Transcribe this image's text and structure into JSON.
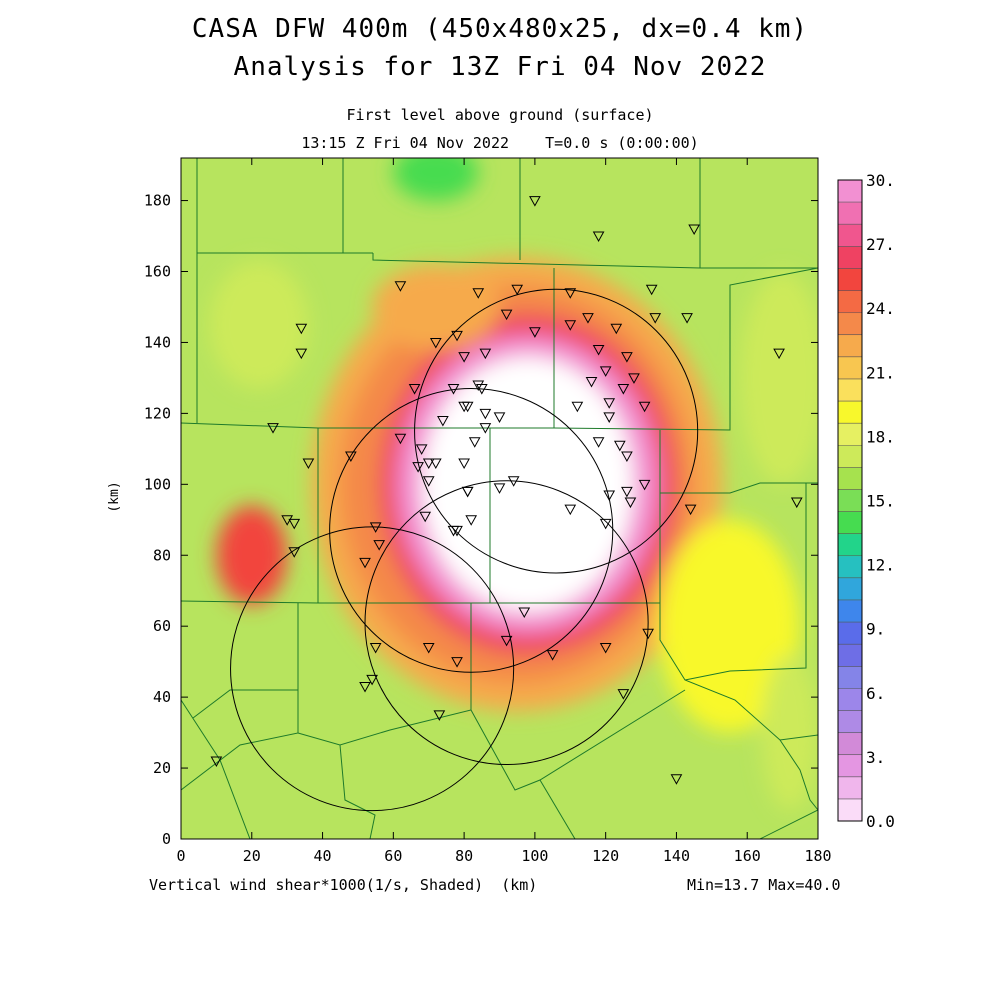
{
  "header": {
    "title": "CASA DFW 400m (450x480x25, dx=0.4 km)",
    "subtitle": "Analysis for 13Z Fri 04 Nov 2022",
    "level": "First level above ground (surface)",
    "valid_time": "13:15 Z Fri 04 Nov 2022    T=0.0 s (0:00:00)"
  },
  "footer": {
    "field_label": "Vertical wind shear*1000(1/s, Shaded)  (km)",
    "minmax": "Min=13.7 Max=40.0"
  },
  "chart_data": {
    "type": "heatmap",
    "title": "CASA DFW 400m (450x480x25, dx=0.4 km)",
    "subtitle": "Analysis for 13Z Fri 04 Nov 2022",
    "xlabel": "(km)",
    "ylabel": "(km)",
    "xlim": [
      0,
      180
    ],
    "ylim": [
      0,
      192
    ],
    "x_ticks": [
      "0",
      "20",
      "40",
      "60",
      "80",
      "100",
      "120",
      "140",
      "160",
      "180"
    ],
    "y_ticks": [
      "0",
      "20",
      "40",
      "60",
      "80",
      "100",
      "120",
      "140",
      "160",
      "180"
    ],
    "field": "Vertical wind shear*1000",
    "units": "1/s",
    "min": 13.7,
    "max": 40.0,
    "colorbar": {
      "levels": [
        0,
        1.5,
        3,
        4.5,
        6,
        7.5,
        9,
        10.5,
        12,
        13.5,
        15,
        16.5,
        18,
        19.5,
        21,
        22.5,
        24,
        25.5,
        27,
        28.5,
        30
      ],
      "labels": [
        "0.0",
        "3.",
        "6.",
        "9.",
        "12.",
        "15.",
        "18.",
        "21.",
        "24.",
        "27.",
        "30."
      ],
      "colors": [
        "#fadcf8",
        "#f0b6ec",
        "#e496e2",
        "#d28ad8",
        "#ae8ae6",
        "#9c86ea",
        "#8484e8",
        "#6e6ee6",
        "#5a6cea",
        "#3e86ec",
        "#30a6dc",
        "#26c0c0",
        "#22d48a",
        "#46dc50",
        "#7ade56",
        "#a6e24e",
        "#cdea5a",
        "#e6f062",
        "#f8f82c",
        "#fae05c",
        "#f8c650",
        "#f6aa4c",
        "#f4894a",
        "#f46a44",
        "#f2453e",
        "#ef4262",
        "#f0568e",
        "#f070b2",
        "#f290d2"
      ]
    },
    "radar_rings": [
      {
        "center_km": [
          106,
          115
        ],
        "radius_km": 40
      },
      {
        "center_km": [
          82,
          87
        ],
        "radius_km": 40
      },
      {
        "center_km": [
          92,
          61
        ],
        "radius_km": 40
      },
      {
        "center_km": [
          54,
          48
        ],
        "radius_km": 40
      }
    ],
    "field_regions": [
      {
        "center_km": [
          98,
          100
        ],
        "radius_km": [
          30,
          36
        ],
        "value": 40.0
      },
      {
        "center_km": [
          98,
          100
        ],
        "radius_km": [
          37,
          42
        ],
        "value": 29.0
      },
      {
        "center_km": [
          98,
          100
        ],
        "radius_km": [
          42,
          48
        ],
        "value": 26.0
      },
      {
        "center_km": [
          95,
          100
        ],
        "radius_km": [
          50,
          56
        ],
        "value": 23.0
      },
      {
        "center_km": [
          95,
          100
        ],
        "radius_km": [
          58,
          64
        ],
        "value": 21.0
      },
      {
        "center_km": [
          20,
          80
        ],
        "radius_km": [
          10,
          14
        ],
        "value": 25.0
      },
      {
        "center_km": [
          72,
          150
        ],
        "radius_km": [
          18,
          12
        ],
        "value": 21.0
      },
      {
        "center_km": [
          155,
          60
        ],
        "radius_km": [
          20,
          30
        ],
        "value": 19.0
      },
      {
        "center_km": [
          22,
          145
        ],
        "radius_km": [
          14,
          18
        ],
        "value": 16.5
      },
      {
        "center_km": [
          72,
          188
        ],
        "radius_km": [
          12,
          8
        ],
        "value": 14.5
      },
      {
        "center_km": [
          170,
          130
        ],
        "radius_km": [
          12,
          30
        ],
        "value": 16.5
      },
      {
        "center_km": [
          172,
          30
        ],
        "radius_km": [
          8,
          22
        ],
        "value": 16.5
      }
    ],
    "stations_km": [
      [
        100,
        180
      ],
      [
        118,
        170
      ],
      [
        145,
        172
      ],
      [
        62,
        156
      ],
      [
        84,
        154
      ],
      [
        95,
        155
      ],
      [
        110,
        154
      ],
      [
        133,
        155
      ],
      [
        34,
        144
      ],
      [
        34,
        137
      ],
      [
        72,
        140
      ],
      [
        78,
        142
      ],
      [
        80,
        136
      ],
      [
        86,
        137
      ],
      [
        92,
        148
      ],
      [
        100,
        143
      ],
      [
        110,
        145
      ],
      [
        115,
        147
      ],
      [
        118,
        138
      ],
      [
        120,
        132
      ],
      [
        123,
        144
      ],
      [
        126,
        136
      ],
      [
        128,
        130
      ],
      [
        125,
        127
      ],
      [
        134,
        147
      ],
      [
        143,
        147
      ],
      [
        169,
        137
      ],
      [
        66,
        127
      ],
      [
        77,
        127
      ],
      [
        84,
        128
      ],
      [
        85,
        127
      ],
      [
        80,
        122
      ],
      [
        81,
        122
      ],
      [
        74,
        118
      ],
      [
        86,
        120
      ],
      [
        90,
        119
      ],
      [
        86,
        116
      ],
      [
        116,
        129
      ],
      [
        112,
        122
      ],
      [
        118,
        112
      ],
      [
        121,
        119
      ],
      [
        121,
        123
      ],
      [
        131,
        122
      ],
      [
        26,
        116
      ],
      [
        36,
        106
      ],
      [
        48,
        108
      ],
      [
        62,
        113
      ],
      [
        67,
        105
      ],
      [
        68,
        110
      ],
      [
        70,
        106
      ],
      [
        72,
        106
      ],
      [
        83,
        112
      ],
      [
        80,
        106
      ],
      [
        70,
        101
      ],
      [
        81,
        98
      ],
      [
        90,
        99
      ],
      [
        94,
        101
      ],
      [
        124,
        111
      ],
      [
        126,
        108
      ],
      [
        121,
        97
      ],
      [
        126,
        98
      ],
      [
        127,
        95
      ],
      [
        131,
        100
      ],
      [
        144,
        93
      ],
      [
        174,
        95
      ],
      [
        110,
        93
      ],
      [
        69,
        91
      ],
      [
        81,
        98
      ],
      [
        82,
        90
      ],
      [
        30,
        90
      ],
      [
        32,
        89
      ],
      [
        55,
        88
      ],
      [
        56,
        83
      ],
      [
        77,
        87
      ],
      [
        78,
        87
      ],
      [
        120,
        89
      ],
      [
        32,
        81
      ],
      [
        52,
        78
      ],
      [
        97,
        64
      ],
      [
        132,
        58
      ],
      [
        55,
        54
      ],
      [
        70,
        54
      ],
      [
        92,
        56
      ],
      [
        105,
        52
      ],
      [
        120,
        54
      ],
      [
        78,
        50
      ],
      [
        54,
        45
      ],
      [
        52,
        43
      ],
      [
        125,
        41
      ],
      [
        73,
        35
      ],
      [
        10,
        22
      ],
      [
        140,
        17
      ]
    ]
  }
}
